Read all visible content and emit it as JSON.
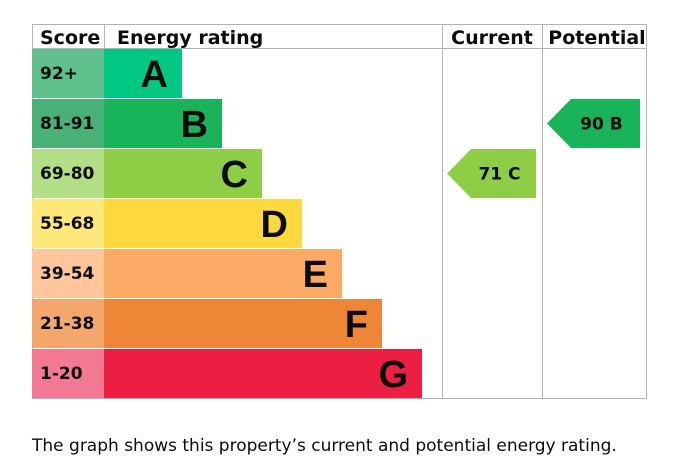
{
  "chart_data": {
    "type": "bar",
    "headers": {
      "score": "Score",
      "rating": "Energy rating",
      "current": "Current",
      "potential": "Potential"
    },
    "bands": [
      {
        "score": "92+",
        "letter": "A",
        "color": "#008054",
        "score_bg": "#5fc08c",
        "bar": "#00c781"
      },
      {
        "score": "81-91",
        "letter": "B",
        "color": "#19b459",
        "score_bg": "#49b078",
        "bar": "#19b459"
      },
      {
        "score": "69-80",
        "letter": "C",
        "color": "#8dce46",
        "score_bg": "#b2df85",
        "bar": "#8dce46"
      },
      {
        "score": "55-68",
        "letter": "D",
        "color": "#ffd500",
        "score_bg": "#fee77b",
        "bar": "#ffd83f"
      },
      {
        "score": "39-54",
        "letter": "E",
        "color": "#fcaa65",
        "score_bg": "#fdc69b",
        "bar": "#fcaa65"
      },
      {
        "score": "21-38",
        "letter": "F",
        "color": "#ef8023",
        "score_bg": "#f3a76c",
        "bar": "#ef8537"
      },
      {
        "score": "1-20",
        "letter": "G",
        "color": "#e9153b",
        "score_bg": "#f27894",
        "bar": "#ec1f42"
      }
    ],
    "current": {
      "value": 71,
      "band": "C",
      "label": "71  C",
      "color": "#8dce46"
    },
    "potential": {
      "value": 90,
      "band": "B",
      "label": "90  B",
      "color": "#19b459"
    }
  },
  "caption": "The graph shows this property’s current and potential energy rating."
}
